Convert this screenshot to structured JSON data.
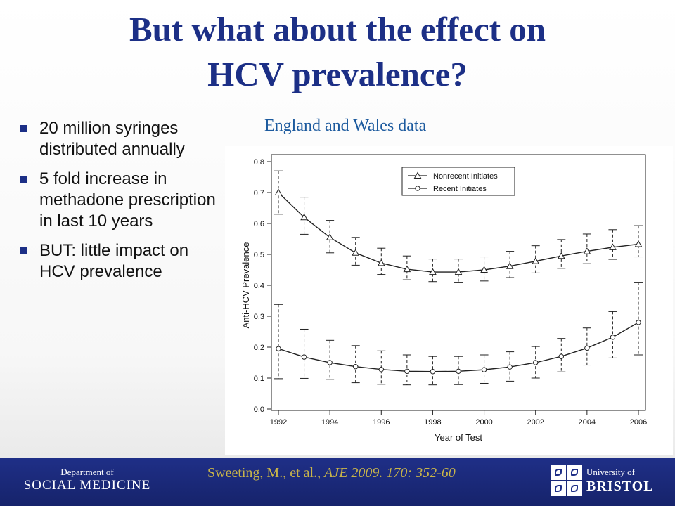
{
  "slide": {
    "title_line1": "But what about the effect on",
    "title_line2": "HCV prevalence?",
    "bullets": [
      "20 million syringes distributed annually",
      "5 fold increase in methadone prescription in last 10 years",
      "BUT: little impact on HCV prevalence"
    ],
    "subtitle": "England and Wales data"
  },
  "footer": {
    "dept_small": "Department of",
    "dept_big": "SOCIAL MEDICINE",
    "citation_authors": "Sweeting, M., et al., ",
    "citation_journal": "AJE 2009.",
    "citation_ref": " 170: 352-60",
    "uni_small": "University of",
    "uni_big": "BRISTOL"
  },
  "chart_data": {
    "type": "line",
    "xlabel": "Year of Test",
    "ylabel": "Anti-HCV Prevalence",
    "xlim": [
      1992,
      2006
    ],
    "ylim": [
      0.0,
      0.8
    ],
    "x_ticks": [
      1992,
      1994,
      1996,
      1998,
      2000,
      2002,
      2004,
      2006
    ],
    "y_ticks": [
      "0.0",
      "0.1",
      "0.2",
      "0.3",
      "0.4",
      "0.5",
      "0.6",
      "0.7",
      "0.8"
    ],
    "legend_position": "top-center",
    "x": [
      1992,
      1993,
      1994,
      1995,
      1996,
      1997,
      1998,
      1999,
      2000,
      2001,
      2002,
      2003,
      2004,
      2005,
      2006
    ],
    "series": [
      {
        "name": "Nonrecent Initiates",
        "marker": "triangle",
        "values": [
          0.7,
          0.62,
          0.555,
          0.505,
          0.472,
          0.452,
          0.443,
          0.443,
          0.45,
          0.462,
          0.478,
          0.495,
          0.51,
          0.523,
          0.533
        ],
        "lower": [
          0.63,
          0.565,
          0.505,
          0.465,
          0.435,
          0.418,
          0.412,
          0.41,
          0.414,
          0.425,
          0.44,
          0.455,
          0.47,
          0.484,
          0.492
        ],
        "upper": [
          0.77,
          0.685,
          0.61,
          0.555,
          0.52,
          0.495,
          0.485,
          0.485,
          0.492,
          0.51,
          0.528,
          0.548,
          0.566,
          0.58,
          0.593
        ]
      },
      {
        "name": "Recent Initiates",
        "marker": "circle",
        "values": [
          0.195,
          0.168,
          0.15,
          0.137,
          0.128,
          0.122,
          0.121,
          0.122,
          0.127,
          0.136,
          0.15,
          0.17,
          0.197,
          0.232,
          0.28
        ],
        "lower": [
          0.098,
          0.099,
          0.095,
          0.085,
          0.08,
          0.078,
          0.078,
          0.079,
          0.083,
          0.09,
          0.1,
          0.12,
          0.142,
          0.165,
          0.175
        ],
        "upper": [
          0.338,
          0.258,
          0.222,
          0.205,
          0.188,
          0.175,
          0.17,
          0.17,
          0.175,
          0.185,
          0.202,
          0.228,
          0.262,
          0.315,
          0.41
        ]
      }
    ]
  }
}
